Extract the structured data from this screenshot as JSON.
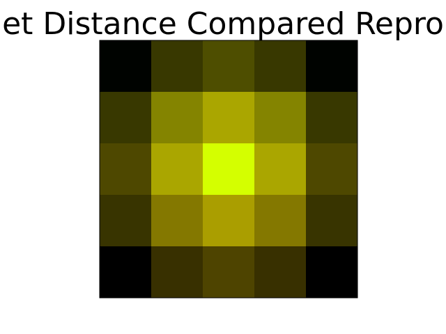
{
  "chart_data": {
    "type": "heatmap",
    "title": "et Distance Compared Repro",
    "xlabel": "",
    "ylabel": "",
    "grid": false,
    "legend": "none",
    "rows": 5,
    "cols": 5,
    "colors": [
      [
        "#000300",
        "#383800",
        "#4e4e00",
        "#383800",
        "#000300"
      ],
      [
        "#383800",
        "#848400",
        "#aaa600",
        "#848400",
        "#383800"
      ],
      [
        "#4e4800",
        "#aaa600",
        "#d4ff00",
        "#aaa600",
        "#4e4800"
      ],
      [
        "#383400",
        "#847800",
        "#aa9e00",
        "#847800",
        "#383400"
      ],
      [
        "#000000",
        "#383000",
        "#4e4400",
        "#383000",
        "#000000"
      ]
    ]
  }
}
